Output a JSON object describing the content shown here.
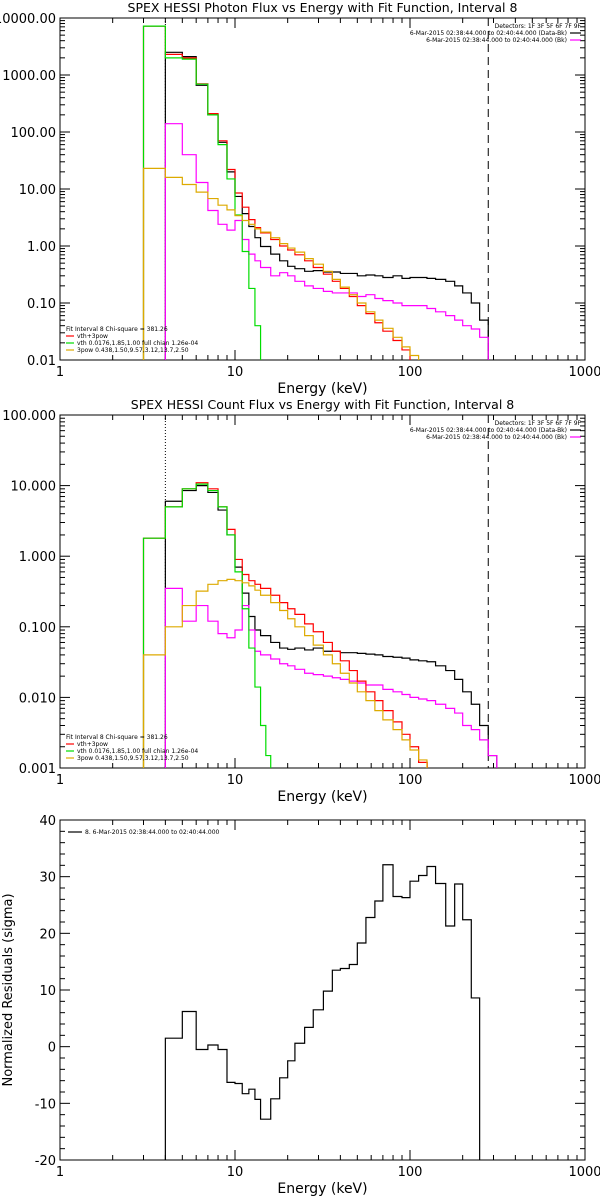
{
  "chart_data": [
    {
      "type": "line",
      "panel": "photon-flux",
      "title": "SPEX HESSI Photon Flux vs Energy with Fit Function, Interval 8",
      "xlabel": "Energy (keV)",
      "ylabel": "",
      "xscale": "log",
      "yscale": "log",
      "xlim": [
        1,
        1000
      ],
      "ylim": [
        0.01,
        10000
      ],
      "x_ticks": [
        1,
        10,
        100,
        1000
      ],
      "x_tick_labels": [
        "1",
        "10",
        "100",
        "1000"
      ],
      "y_ticks": [
        0.01,
        0.1,
        1,
        10,
        100,
        1000,
        10000
      ],
      "y_tick_labels": [
        "0.01",
        "0.10",
        "1.00",
        "10.00",
        "100.00",
        "1000.00",
        "10000.00"
      ],
      "vlines": [
        {
          "x": 4.0,
          "style": "dotted"
        },
        {
          "x": 280,
          "style": "dashed"
        }
      ],
      "legend_top": [
        "Detectors: 1F 3F 5F 6F 7F 9F",
        "6-Mar-2015 02:38:44.000 to 02:40:44.000 (Data-Bk)",
        "6-Mar-2015 02:38:44.000 to 02:40:44.000 (Bk)"
      ],
      "legend_top_colors": [
        "",
        "#000000",
        "#ff00ff"
      ],
      "legend_bottom": [
        "Fit Interval  8   Chi-square = 381.26",
        "vth+3pow",
        "vth 0.0176,1.85,1.00  full chian 1.26e-04",
        "3pow 0.438,1.50,9.57,3.12,13.7,2.50"
      ],
      "legend_bottom_colors": [
        "",
        "#ff0000",
        "#00dd00",
        "#ddaa00"
      ],
      "series": [
        {
          "name": "Data-Bk",
          "color": "#000000",
          "x": [
            4,
            5,
            6,
            7,
            8,
            9,
            10,
            11,
            12,
            13,
            14,
            16,
            18,
            20,
            22,
            25,
            28,
            32,
            36,
            40,
            45,
            50,
            56,
            63,
            70,
            80,
            90,
            100,
            112,
            125,
            140,
            160,
            180,
            200,
            224,
            250,
            280
          ],
          "y": [
            2500,
            2100,
            660,
            200,
            66,
            20,
            7.4,
            3.7,
            2.2,
            1.4,
            0.98,
            0.72,
            0.55,
            0.44,
            0.4,
            0.36,
            0.37,
            0.35,
            0.35,
            0.33,
            0.33,
            0.3,
            0.31,
            0.3,
            0.28,
            0.3,
            0.27,
            0.28,
            0.28,
            0.27,
            0.26,
            0.24,
            0.2,
            0.15,
            0.1,
            0.05,
            0.01
          ]
        },
        {
          "name": "Bk",
          "color": "#ff00ff",
          "x": [
            4,
            5,
            6,
            7,
            8,
            9,
            10,
            11,
            12,
            13,
            14,
            16,
            18,
            20,
            22,
            25,
            28,
            32,
            36,
            40,
            45,
            50,
            56,
            63,
            70,
            80,
            90,
            100,
            112,
            125,
            140,
            160,
            180,
            200,
            224,
            250,
            280
          ],
          "y": [
            140,
            40,
            13,
            4.2,
            2.4,
            1.9,
            2.8,
            1.3,
            0.72,
            0.55,
            0.42,
            0.3,
            0.34,
            0.3,
            0.24,
            0.2,
            0.18,
            0.16,
            0.15,
            0.15,
            0.15,
            0.13,
            0.14,
            0.12,
            0.11,
            0.1,
            0.09,
            0.09,
            0.09,
            0.08,
            0.07,
            0.06,
            0.05,
            0.04,
            0.035,
            0.025,
            0.01
          ]
        },
        {
          "name": "vth+3pow",
          "color": "#ff0000",
          "x": [
            3,
            4,
            5,
            6,
            7,
            8,
            9,
            10,
            11,
            12,
            13,
            14,
            16,
            18,
            20,
            22,
            25,
            28,
            32,
            36,
            40,
            45,
            50,
            56,
            63,
            70,
            80,
            90,
            100
          ],
          "y": [
            7200,
            2300,
            2000,
            700,
            210,
            70,
            22,
            8.5,
            4.8,
            2.9,
            2.1,
            1.7,
            1.3,
            1.0,
            0.85,
            0.7,
            0.55,
            0.42,
            0.32,
            0.24,
            0.18,
            0.13,
            0.09,
            0.065,
            0.045,
            0.032,
            0.022,
            0.015,
            0.01
          ]
        },
        {
          "name": "vth",
          "color": "#00dd00",
          "x": [
            3,
            4,
            5,
            6,
            7,
            8,
            9,
            10,
            11,
            12,
            13,
            14,
            15
          ],
          "y": [
            7200,
            2000,
            1900,
            690,
            200,
            60,
            15,
            3.5,
            0.8,
            0.18,
            0.04,
            0.01,
            0.01
          ]
        },
        {
          "name": "3pow",
          "color": "#ddaa00",
          "x": [
            3,
            4,
            5,
            6,
            7,
            8,
            9,
            10,
            11,
            12,
            13,
            14,
            16,
            18,
            20,
            22,
            25,
            28,
            32,
            36,
            40,
            45,
            50,
            56,
            63,
            70,
            80,
            90,
            100,
            112
          ],
          "y": [
            23,
            16,
            12,
            8.8,
            6.8,
            5.2,
            4.3,
            3.4,
            2.8,
            2.4,
            2.0,
            1.75,
            1.4,
            1.1,
            0.92,
            0.78,
            0.6,
            0.48,
            0.36,
            0.26,
            0.19,
            0.14,
            0.1,
            0.07,
            0.05,
            0.036,
            0.025,
            0.017,
            0.012,
            0.01
          ]
        }
      ]
    },
    {
      "type": "line",
      "panel": "count-flux",
      "title": "SPEX HESSI Count Flux vs Energy with Fit Function, Interval 8",
      "xlabel": "Energy (keV)",
      "ylabel": "",
      "xscale": "log",
      "yscale": "log",
      "xlim": [
        1,
        1000
      ],
      "ylim": [
        0.001,
        100
      ],
      "x_ticks": [
        1,
        10,
        100,
        1000
      ],
      "x_tick_labels": [
        "1",
        "10",
        "100",
        "1000"
      ],
      "y_ticks": [
        0.001,
        0.01,
        0.1,
        1,
        10,
        100
      ],
      "y_tick_labels": [
        "0.001",
        "0.010",
        "0.100",
        "1.000",
        "10.000",
        "100.000"
      ],
      "vlines": [
        {
          "x": 4.0,
          "style": "dotted"
        },
        {
          "x": 280,
          "style": "dashed"
        }
      ],
      "legend_top": [
        "Detectors: 1F 3F 5F 6F 7F 9F",
        "6-Mar-2015 02:38:44.000 to 02:40:44.000 (Data-Bk)",
        "6-Mar-2015 02:38:44.000 to 02:40:44.000 (Bk)"
      ],
      "legend_top_colors": [
        "",
        "#000000",
        "#ff00ff"
      ],
      "legend_bottom": [
        "Fit Interval  8   Chi-square = 381.26",
        "vth+3pow",
        "vth 0.0176,1.85,1.00  full chian 1.26e-04",
        "3pow 0.438,1.50,9.57,3.12,13.7,2.50"
      ],
      "legend_bottom_colors": [
        "",
        "#ff0000",
        "#00dd00",
        "#ddaa00"
      ],
      "series": [
        {
          "name": "Data-Bk",
          "color": "#000000",
          "x": [
            4,
            5,
            6,
            7,
            8,
            9,
            10,
            11,
            12,
            13,
            14,
            16,
            18,
            20,
            22,
            25,
            28,
            32,
            36,
            40,
            45,
            50,
            56,
            63,
            70,
            80,
            90,
            100,
            112,
            125,
            140,
            160,
            180,
            200,
            224,
            250,
            280
          ],
          "y": [
            6,
            8.5,
            10,
            8,
            4.5,
            2.0,
            0.7,
            0.3,
            0.14,
            0.09,
            0.075,
            0.06,
            0.05,
            0.048,
            0.05,
            0.047,
            0.05,
            0.045,
            0.045,
            0.043,
            0.043,
            0.042,
            0.041,
            0.04,
            0.038,
            0.037,
            0.036,
            0.034,
            0.033,
            0.032,
            0.028,
            0.024,
            0.018,
            0.012,
            0.008,
            0.004,
            0.0015
          ]
        },
        {
          "name": "Bk",
          "color": "#ff00ff",
          "x": [
            4,
            5,
            6,
            7,
            8,
            9,
            10,
            11,
            12,
            13,
            14,
            16,
            18,
            20,
            22,
            25,
            28,
            32,
            36,
            40,
            45,
            50,
            56,
            63,
            70,
            80,
            90,
            100,
            112,
            125,
            140,
            160,
            180,
            200,
            224,
            250,
            280
          ],
          "y": [
            0.35,
            0.12,
            0.2,
            0.12,
            0.08,
            0.07,
            0.09,
            0.2,
            0.09,
            0.045,
            0.04,
            0.035,
            0.03,
            0.028,
            0.025,
            0.022,
            0.021,
            0.02,
            0.019,
            0.018,
            0.017,
            0.016,
            0.015,
            0.015,
            0.013,
            0.012,
            0.011,
            0.01,
            0.0095,
            0.009,
            0.008,
            0.007,
            0.006,
            0.004,
            0.0035,
            0.0025,
            0.0015
          ]
        },
        {
          "name": "vth+3pow",
          "color": "#ff0000",
          "x": [
            3,
            4,
            5,
            6,
            7,
            8,
            9,
            10,
            11,
            12,
            13,
            14,
            16,
            18,
            20,
            22,
            25,
            28,
            32,
            36,
            40,
            45,
            50,
            56,
            63,
            70,
            80,
            90,
            100,
            112
          ],
          "y": [
            1.8,
            5,
            9,
            11,
            9,
            5,
            2.4,
            0.9,
            0.55,
            0.45,
            0.4,
            0.35,
            0.28,
            0.22,
            0.18,
            0.15,
            0.11,
            0.085,
            0.06,
            0.045,
            0.033,
            0.024,
            0.017,
            0.012,
            0.009,
            0.0065,
            0.0045,
            0.003,
            0.002,
            0.0012
          ]
        },
        {
          "name": "vth",
          "color": "#00dd00",
          "x": [
            3,
            4,
            5,
            6,
            7,
            8,
            9,
            10,
            11,
            12,
            13,
            14,
            15,
            16,
            17
          ],
          "y": [
            1.8,
            5,
            9,
            10.5,
            8.5,
            5,
            2.0,
            0.6,
            0.18,
            0.05,
            0.014,
            0.004,
            0.0015,
            0.001,
            0.001
          ]
        },
        {
          "name": "3pow",
          "color": "#ddaa00",
          "x": [
            3,
            4,
            5,
            6,
            7,
            8,
            9,
            10,
            11,
            12,
            13,
            14,
            16,
            18,
            20,
            22,
            25,
            28,
            32,
            36,
            40,
            45,
            50,
            56,
            63,
            70,
            80,
            90,
            100,
            112,
            125,
            140
          ],
          "y": [
            0.04,
            0.1,
            0.2,
            0.32,
            0.4,
            0.45,
            0.47,
            0.45,
            0.42,
            0.38,
            0.33,
            0.28,
            0.22,
            0.17,
            0.13,
            0.1,
            0.075,
            0.055,
            0.04,
            0.03,
            0.022,
            0.016,
            0.012,
            0.009,
            0.0065,
            0.0048,
            0.0035,
            0.0025,
            0.0018,
            0.0013,
            0.001,
            0.001
          ]
        }
      ]
    },
    {
      "type": "line",
      "panel": "residuals",
      "title": "",
      "xlabel": "Energy (keV)",
      "ylabel": "Normalized Residuals (sigma)",
      "xscale": "log",
      "yscale": "linear",
      "xlim": [
        1,
        1000
      ],
      "ylim": [
        -20,
        40
      ],
      "x_ticks": [
        1,
        10,
        100,
        1000
      ],
      "x_tick_labels": [
        "1",
        "10",
        "100",
        "1000"
      ],
      "y_ticks": [
        -20,
        -10,
        0,
        10,
        20,
        30,
        40
      ],
      "y_tick_labels": [
        "-20",
        "-10",
        "0",
        "10",
        "20",
        "30",
        "40"
      ],
      "legend_top": [
        "8.  6-Mar-2015 02:38:44.000 to 02:40:44.000"
      ],
      "legend_top_colors": [
        "#000000"
      ],
      "series": [
        {
          "name": "8.  6-Mar-2015 02:38:44.000 to 02:40:44.000",
          "color": "#000000",
          "x": [
            4,
            5,
            6,
            7,
            8,
            9,
            10,
            11,
            12,
            13,
            14,
            16,
            18,
            20,
            22,
            25,
            28,
            32,
            36,
            40,
            45,
            50,
            56,
            63,
            70,
            80,
            90,
            100,
            112,
            125,
            140,
            160,
            180,
            200,
            224,
            250,
            280
          ],
          "y": [
            1.5,
            6.2,
            -0.5,
            0.3,
            -0.5,
            -6.3,
            -6.5,
            -8.3,
            -7.5,
            -9.3,
            -12.8,
            -9.2,
            -5.5,
            -2.5,
            0.6,
            3.4,
            6.5,
            9.8,
            13.5,
            13.8,
            14.5,
            18.3,
            22.8,
            25.7,
            32.1,
            26.5,
            26.3,
            29.2,
            30.2,
            31.8,
            28.8,
            21.3,
            28.7,
            22.4,
            8.6,
            -20,
            -20
          ]
        }
      ]
    }
  ]
}
